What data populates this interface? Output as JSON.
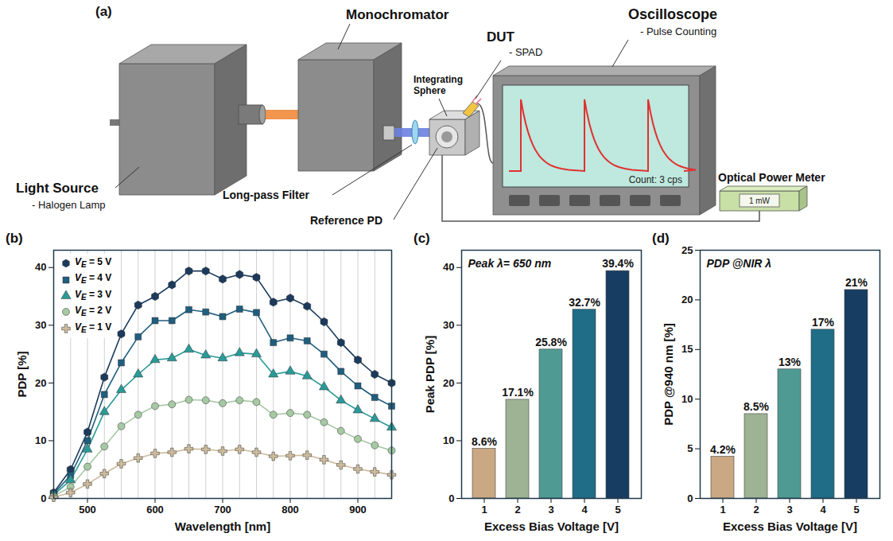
{
  "diagram": {
    "panel": "(a)",
    "light_source": {
      "label": "Light Source",
      "sublabel": "- Halogen Lamp"
    },
    "monochromator": {
      "label": "Monochromator"
    },
    "filter": {
      "label": "Long-pass Filter"
    },
    "sphere": {
      "label": "Integrating Sphere"
    },
    "dut": {
      "label": "DUT",
      "sublabel": "- SPAD"
    },
    "reference_pd": {
      "label": "Reference PD"
    },
    "oscilloscope": {
      "label": "Oscilloscope",
      "sublabel": "- Pulse Counting",
      "screen": "Count: 3 cps"
    },
    "power_meter": {
      "label": "Optical Power Meter",
      "display": "1 mW"
    }
  },
  "chart_data": [
    {
      "panel": "(b)",
      "type": "line",
      "xlabel": "Wavelength [nm]",
      "ylabel": "PDP [%]",
      "x": [
        450,
        475,
        500,
        525,
        550,
        575,
        600,
        625,
        650,
        675,
        700,
        725,
        750,
        775,
        800,
        825,
        850,
        875,
        900,
        925,
        950
      ],
      "xlim": [
        450,
        950
      ],
      "xticks": [
        500,
        600,
        700,
        800,
        900
      ],
      "ylim": [
        0,
        43
      ],
      "yticks": [
        0,
        10,
        20,
        30,
        40
      ],
      "grid": true,
      "legend": "top-left",
      "series": [
        {
          "name": "VE = 5 V",
          "color": "#1b3a5c",
          "marker": "hexagon",
          "values": [
            1,
            5,
            11.5,
            21,
            28.5,
            33.5,
            35,
            37,
            39.4,
            39.4,
            38,
            38.8,
            38.3,
            34,
            34.7,
            33.3,
            30.6,
            27,
            24,
            21.5,
            20
          ]
        },
        {
          "name": "VE = 4 V",
          "color": "#1f5e7e",
          "marker": "square",
          "values": [
            0.8,
            4,
            10,
            18,
            23.5,
            28,
            30.8,
            30.8,
            32.7,
            32.3,
            31.5,
            32.8,
            32.2,
            27,
            27.8,
            27.3,
            25,
            22,
            19.5,
            17.5,
            16
          ]
        },
        {
          "name": "VE = 3 V",
          "color": "#2a9a97",
          "marker": "triangle",
          "values": [
            0.6,
            3.2,
            8.5,
            15,
            18.8,
            21.5,
            24,
            24.3,
            25.8,
            24.8,
            24.3,
            25.2,
            25,
            21.5,
            22,
            21.2,
            19.3,
            17,
            15.3,
            13.8,
            12.3
          ]
        },
        {
          "name": "VE = 2 V",
          "color": "#a6c9a4",
          "marker": "circle",
          "values": [
            0.4,
            2,
            5.5,
            9,
            12.5,
            14.5,
            16,
            16.3,
            17.1,
            17,
            16.5,
            17,
            16.7,
            14.5,
            14.8,
            14.5,
            13.2,
            11.7,
            10.3,
            9.2,
            8.3
          ]
        },
        {
          "name": "VE = 1 V",
          "color": "#cdbb9c",
          "marker": "cross",
          "values": [
            0.2,
            1,
            2.5,
            4.3,
            6,
            7,
            7.8,
            8,
            8.6,
            8.5,
            8.2,
            8.5,
            8,
            7.3,
            7.4,
            7.5,
            6.7,
            5.8,
            5.1,
            4.6,
            4.1
          ]
        }
      ]
    },
    {
      "panel": "(c)",
      "type": "bar",
      "title": "Peak λ= 650 nm",
      "xlabel": "Excess Bias Voltage [V]",
      "ylabel": "Peak PDP [%]",
      "categories": [
        1,
        2,
        3,
        4,
        5
      ],
      "values": [
        8.6,
        17.1,
        25.8,
        32.7,
        39.4
      ],
      "value_labels": [
        "8.6%",
        "17.1%",
        "25.8%",
        "32.7%",
        "39.4%"
      ],
      "data_labels": true,
      "colors": [
        "#c9a883",
        "#9db394",
        "#4f9b94",
        "#1f6d86",
        "#173d63"
      ],
      "ylim": [
        0,
        43
      ],
      "yticks": [
        0,
        10,
        20,
        30,
        40
      ]
    },
    {
      "panel": "(d)",
      "type": "bar",
      "title": "PDP @NIR λ",
      "xlabel": "Excess Bias Voltage [V]",
      "ylabel": "PDP @940 nm [%]",
      "categories": [
        1,
        2,
        3,
        4,
        5
      ],
      "values": [
        4.2,
        8.5,
        13,
        17,
        21
      ],
      "value_labels": [
        "4.2%",
        "8.5%",
        "13%",
        "17%",
        "21%"
      ],
      "data_labels": true,
      "colors": [
        "#c9a883",
        "#9db394",
        "#4f9b94",
        "#1f6d86",
        "#173d63"
      ],
      "ylim": [
        0,
        25
      ],
      "yticks": [
        0,
        5,
        10,
        15,
        20,
        25
      ]
    }
  ]
}
